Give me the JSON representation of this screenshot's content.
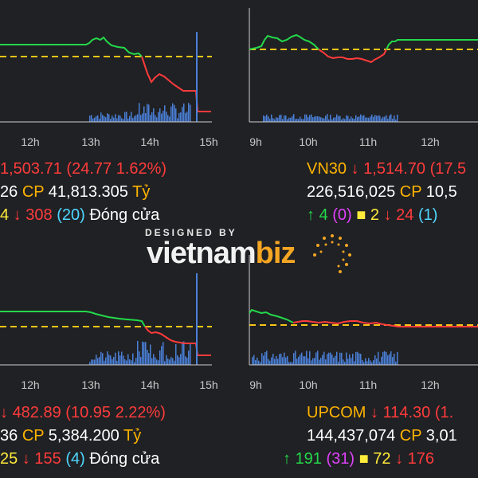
{
  "chart_data": [
    {
      "type": "line",
      "panel": "top-left",
      "x_ticks": [
        "12h",
        "13h",
        "14h",
        "15h"
      ],
      "reference_line": "dashed",
      "info": {
        "line1": {
          "index": "",
          "arrow": "",
          "value": "1,503.71",
          "change": "(24.77 1.62%)"
        },
        "line2": {
          "volume": "26",
          "cp_label": "CP",
          "amount": "41,813.305",
          "unit": "Tỷ"
        },
        "line3": {
          "up_count": "4",
          "down_arrow": "↓",
          "down_count": "308",
          "down_paren": "(20)",
          "status": "Đóng cửa"
        }
      }
    },
    {
      "type": "line",
      "panel": "top-right",
      "x_ticks": [
        "9h",
        "10h",
        "11h",
        "12h"
      ],
      "reference_line": "dashed",
      "info": {
        "line1": {
          "index": "VN30",
          "arrow": "↓",
          "value": "1,514.70",
          "change": "(17.5"
        },
        "line2": {
          "volume": "226,516,025",
          "cp_label": "CP",
          "amount": "10,5"
        },
        "line3": {
          "up_arrow": "↑",
          "up_count": "4",
          "up_paren": "(0)",
          "square": "■",
          "ref_count": "2",
          "down_arrow": "↓",
          "down_count": "24",
          "down_paren": "(1)"
        }
      }
    },
    {
      "type": "line",
      "panel": "bottom-left",
      "x_ticks": [
        "12h",
        "13h",
        "14h",
        "15h"
      ],
      "reference_line": "dashed",
      "info": {
        "line1": {
          "arrow": "↓",
          "value": "482.89",
          "change": "(10.95 2.22%)"
        },
        "line2": {
          "volume": "36",
          "cp_label": "CP",
          "amount": "5,384.200",
          "unit": "Tỷ"
        },
        "line3": {
          "up_count": "25",
          "down_arrow": "↓",
          "down_count": "155",
          "down_paren": "(4)",
          "status": "Đóng cửa"
        }
      }
    },
    {
      "type": "line",
      "panel": "bottom-right",
      "x_ticks": [
        "9h",
        "10h",
        "11h",
        "12h"
      ],
      "reference_line": "dashed",
      "info": {
        "line1": {
          "index": "UPCOM",
          "arrow": "↓",
          "value": "114.30",
          "change": "(1."
        },
        "line2": {
          "volume": "144,437,074",
          "cp_label": "CP",
          "amount": "3,01"
        },
        "line3": {
          "up_arrow": "↑",
          "up_count": "191",
          "up_paren": "(31)",
          "square": "■",
          "ref_count": "72",
          "down_arrow": "↓",
          "down_count": "176"
        }
      }
    }
  ],
  "watermark": {
    "top": "DESIGNED BY",
    "main": "vietnam",
    "accent": "biz"
  },
  "colors": {
    "background": "#202124",
    "up": "#23d84a",
    "down": "#ff3b3b",
    "reference": "#f5c518",
    "volume": "#4a80d8",
    "axis": "#cfcfcf"
  }
}
